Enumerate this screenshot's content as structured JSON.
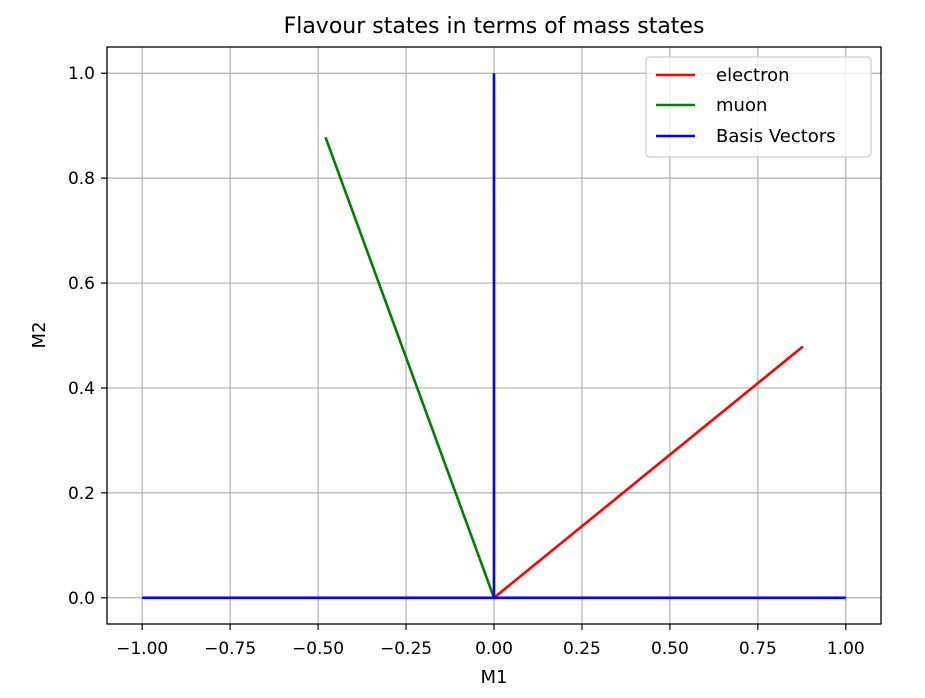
{
  "chart_data": {
    "type": "line",
    "title": "Flavour states in terms of mass states",
    "xlabel": "M1",
    "ylabel": "M2",
    "xlim": [
      -1.1,
      1.1
    ],
    "ylim": [
      -0.05,
      1.05
    ],
    "xticks": [
      -1.0,
      -0.75,
      -0.5,
      -0.25,
      0.0,
      0.25,
      0.5,
      0.75,
      1.0
    ],
    "xtick_labels": [
      "−1.00",
      "−0.75",
      "−0.50",
      "−0.25",
      "0.00",
      "0.25",
      "0.50",
      "0.75",
      "1.00"
    ],
    "yticks": [
      0.0,
      0.2,
      0.4,
      0.6,
      0.8,
      1.0
    ],
    "ytick_labels": [
      "0.0",
      "0.2",
      "0.4",
      "0.6",
      "0.8",
      "1.0"
    ],
    "grid": true,
    "legend_position": "top-right",
    "series": [
      {
        "name": "electron",
        "color": "#ff0000",
        "x": [
          0.0,
          0.878
        ],
        "y": [
          0.0,
          0.479
        ]
      },
      {
        "name": "muon",
        "color": "#008000",
        "x": [
          0.0,
          -0.479
        ],
        "y": [
          0.0,
          0.878
        ]
      },
      {
        "name": "Basis Vectors",
        "color": "#0000ff",
        "x": [
          -1.0,
          1.0
        ],
        "y": [
          0.0,
          0.0
        ]
      },
      {
        "name": "",
        "color": "#0000ff",
        "x": [
          0.0,
          0.0
        ],
        "y": [
          0.0,
          1.0
        ]
      }
    ]
  }
}
